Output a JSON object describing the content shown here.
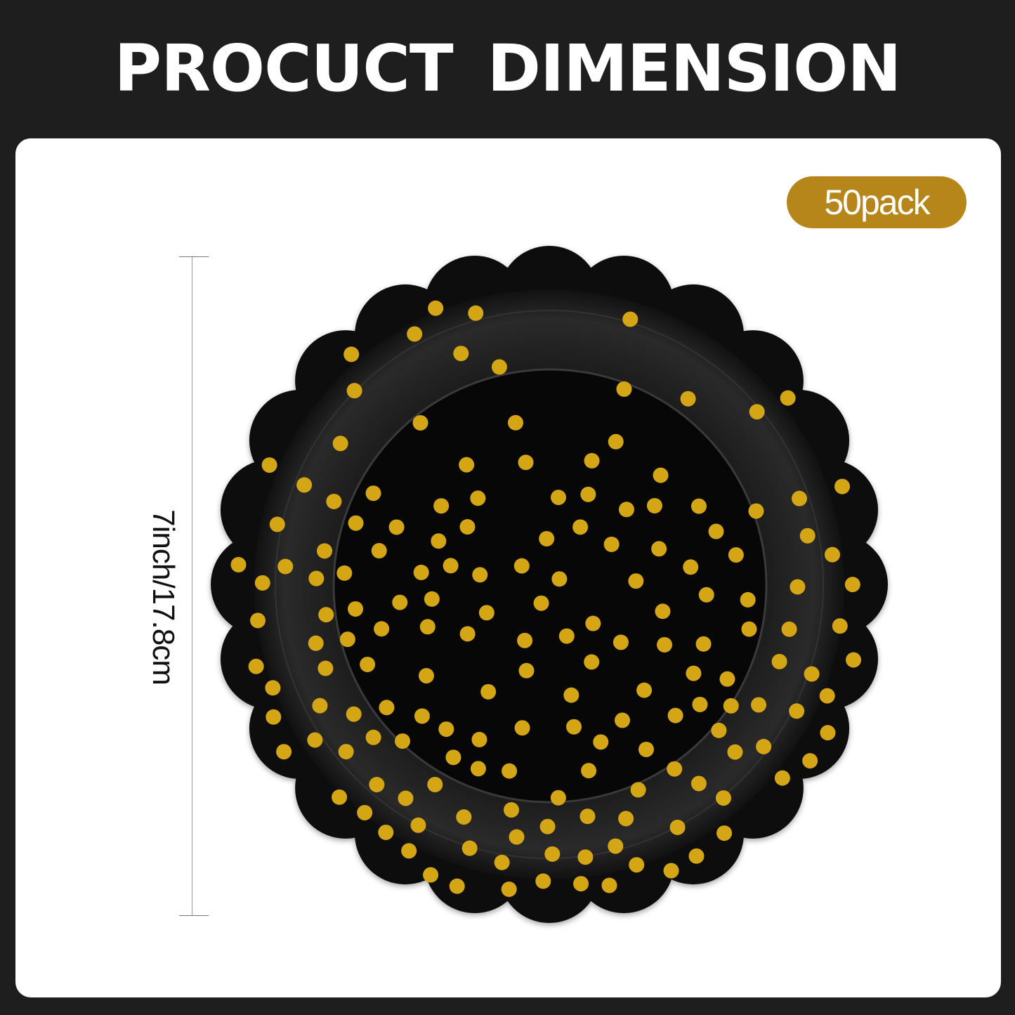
{
  "title": "PROCUCT  DIMENSION",
  "badge": {
    "label": "50pack",
    "color": "#b7861b"
  },
  "dimension": {
    "label": "7inch/17.8cm"
  },
  "product": {
    "plate_color": "#0b0b0b",
    "dot_color": "#d4a514"
  }
}
